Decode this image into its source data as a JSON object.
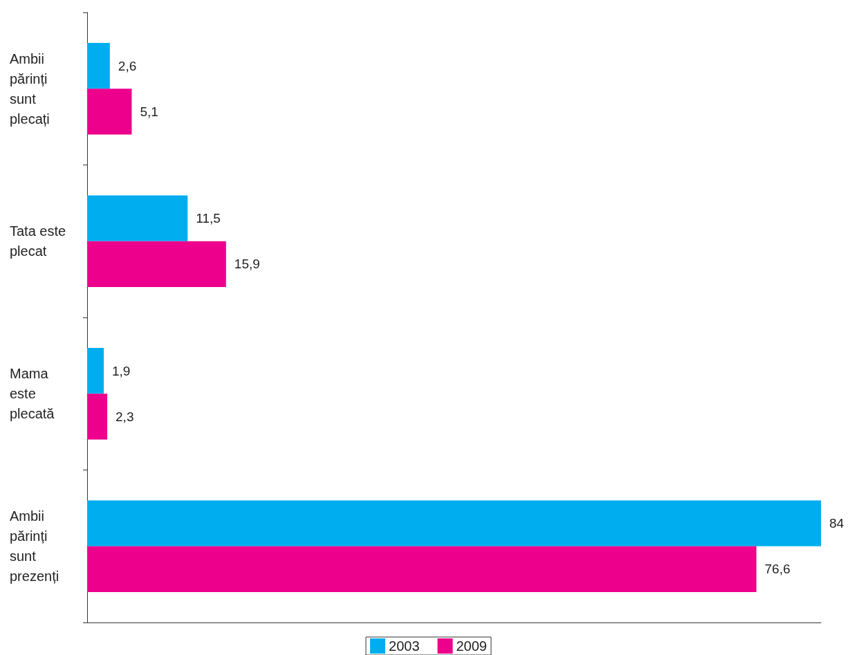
{
  "chart_data": {
    "type": "bar",
    "orientation": "horizontal",
    "categories": [
      "Ambii părinți sunt plecați",
      "Tata este plecat",
      "Mama este plecată",
      "Ambii părinți sunt prezenți"
    ],
    "series": [
      {
        "name": "2003",
        "color": "#00aeef",
        "values": [
          2.6,
          11.5,
          1.9,
          84
        ],
        "value_labels": [
          "2,6",
          "11,5",
          "1,9",
          "84"
        ]
      },
      {
        "name": "2009",
        "color": "#ec008c",
        "values": [
          5.1,
          15.9,
          2.3,
          76.6
        ],
        "value_labels": [
          "5,1",
          "15,9",
          "2,3",
          "76,6"
        ]
      }
    ],
    "tick_labels": "y",
    "grid": false,
    "legend": "bottom"
  }
}
